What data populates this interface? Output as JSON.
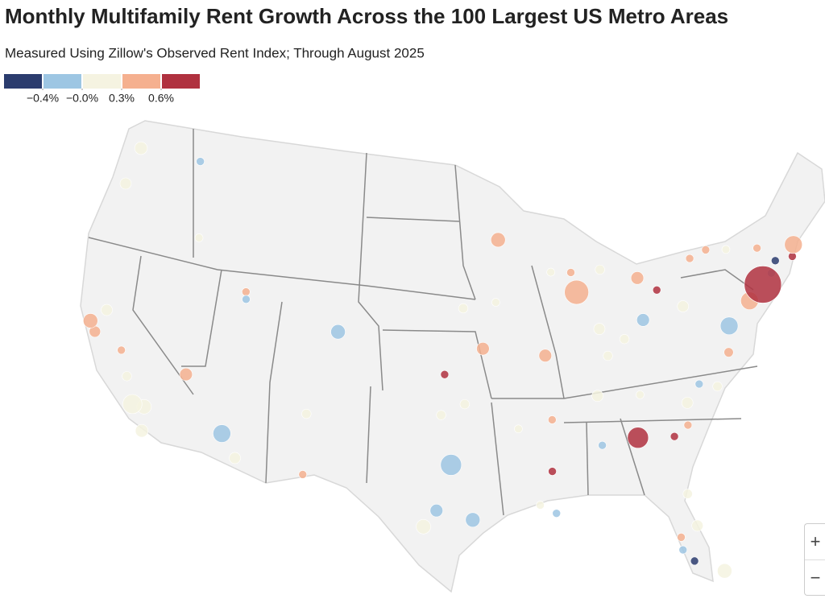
{
  "chart_data": {
    "type": "bubble-map",
    "title": "Monthly Multifamily Rent Growth Across the 100 Largest US Metro Areas",
    "subtitle": "Measured Using Zillow's Observed Rent Index; Through August 2025",
    "legend": {
      "colors": [
        "#2b3c6e",
        "#9dc6e3",
        "#f5f3e1",
        "#f5b08f",
        "#b0313f"
      ],
      "ticks": [
        {
          "value": -0.4,
          "label": "−0.4%"
        },
        {
          "value": 0,
          "label": "−0.0%"
        },
        {
          "value": 0.3,
          "label": "0.3%"
        },
        {
          "value": 0.6,
          "label": "0.6%"
        }
      ]
    },
    "points": [
      {
        "lon": -74.0,
        "lat": 40.7,
        "value": 0.7,
        "weight": 100
      },
      {
        "lon": -71.1,
        "lat": 42.4,
        "value": 0.45,
        "weight": 16
      },
      {
        "lon": -75.2,
        "lat": 40.0,
        "value": 0.45,
        "weight": 16
      },
      {
        "lon": -77.0,
        "lat": 38.9,
        "value": -0.2,
        "weight": 16
      },
      {
        "lon": -87.6,
        "lat": 41.9,
        "value": 0.45,
        "weight": 36
      },
      {
        "lon": -84.4,
        "lat": 33.7,
        "value": 0.7,
        "weight": 25
      },
      {
        "lon": -96.8,
        "lat": 32.8,
        "value": -0.2,
        "weight": 25
      },
      {
        "lon": -95.4,
        "lat": 29.8,
        "value": -0.2,
        "weight": 9
      },
      {
        "lon": -97.7,
        "lat": 30.3,
        "value": -0.2,
        "weight": 6
      },
      {
        "lon": -98.5,
        "lat": 29.4,
        "value": 0.1,
        "weight": 9
      },
      {
        "lon": -112.0,
        "lat": 33.4,
        "value": -0.2,
        "weight": 16
      },
      {
        "lon": -118.2,
        "lat": 34.0,
        "value": 0.2,
        "weight": 20
      },
      {
        "lon": -122.4,
        "lat": 37.8,
        "value": 0.45,
        "weight": 9
      },
      {
        "lon": -121.9,
        "lat": 37.3,
        "value": 0.45,
        "weight": 4
      },
      {
        "lon": -121.5,
        "lat": 38.6,
        "value": 0.15,
        "weight": 4
      },
      {
        "lon": -119.8,
        "lat": 36.7,
        "value": 0.45,
        "weight": 1
      },
      {
        "lon": -117.4,
        "lat": 34.0,
        "value": 0.2,
        "weight": 9
      },
      {
        "lon": -117.2,
        "lat": 32.7,
        "value": 0.2,
        "weight": 6
      },
      {
        "lon": -115.1,
        "lat": 36.2,
        "value": 0.45,
        "weight": 6
      },
      {
        "lon": -105.0,
        "lat": 39.7,
        "value": -0.2,
        "weight": 9
      },
      {
        "lon": -111.9,
        "lat": 40.8,
        "value": -0.1,
        "weight": 1
      },
      {
        "lon": -112.0,
        "lat": 41.2,
        "value": 0.45,
        "weight": 1
      },
      {
        "lon": -122.3,
        "lat": 47.6,
        "value": 0.15,
        "weight": 6
      },
      {
        "lon": -117.4,
        "lat": 47.7,
        "value": -0.2,
        "weight": 1
      },
      {
        "lon": -122.7,
        "lat": 45.5,
        "value": 0.15,
        "weight": 4
      },
      {
        "lon": -93.3,
        "lat": 45.0,
        "value": 0.45,
        "weight": 9
      },
      {
        "lon": -87.9,
        "lat": 43.0,
        "value": 0.45,
        "weight": 1
      },
      {
        "lon": -83.0,
        "lat": 42.3,
        "value": 0.45,
        "weight": 6
      },
      {
        "lon": -81.7,
        "lat": 41.5,
        "value": 0.7,
        "weight": 1
      },
      {
        "lon": -83.0,
        "lat": 40.0,
        "value": -0.2,
        "weight": 6
      },
      {
        "lon": -80.0,
        "lat": 40.4,
        "value": 0.15,
        "weight": 4
      },
      {
        "lon": -78.9,
        "lat": 42.9,
        "value": 0.45,
        "weight": 1
      },
      {
        "lon": -77.6,
        "lat": 43.2,
        "value": 0.45,
        "weight": 1
      },
      {
        "lon": -76.1,
        "lat": 43.0,
        "value": 0.15,
        "weight": 1
      },
      {
        "lon": -73.8,
        "lat": 42.7,
        "value": 0.45,
        "weight": 1
      },
      {
        "lon": -72.7,
        "lat": 41.8,
        "value": -0.5,
        "weight": 1
      },
      {
        "lon": -71.4,
        "lat": 41.8,
        "value": 0.7,
        "weight": 1
      },
      {
        "lon": -73.2,
        "lat": 41.2,
        "value": -0.2,
        "weight": 1
      },
      {
        "lon": -94.6,
        "lat": 39.1,
        "value": 0.45,
        "weight": 6
      },
      {
        "lon": -90.2,
        "lat": 38.6,
        "value": 0.45,
        "weight": 6
      },
      {
        "lon": -97.3,
        "lat": 37.7,
        "value": 0.7,
        "weight": 1
      },
      {
        "lon": -97.5,
        "lat": 35.5,
        "value": 0.15,
        "weight": 2
      },
      {
        "lon": -95.9,
        "lat": 36.1,
        "value": 0.15,
        "weight": 2
      },
      {
        "lon": -90.0,
        "lat": 35.1,
        "value": 0.45,
        "weight": 1
      },
      {
        "lon": -90.2,
        "lat": 32.3,
        "value": 0.7,
        "weight": 1
      },
      {
        "lon": -86.8,
        "lat": 33.5,
        "value": -0.2,
        "weight": 1
      },
      {
        "lon": -86.8,
        "lat": 36.2,
        "value": 0.15,
        "weight": 4
      },
      {
        "lon": -80.8,
        "lat": 35.2,
        "value": 0.15,
        "weight": 4
      },
      {
        "lon": -81.0,
        "lat": 34.0,
        "value": 0.45,
        "weight": 1
      },
      {
        "lon": -82.0,
        "lat": 33.5,
        "value": 0.7,
        "weight": 1
      },
      {
        "lon": -78.6,
        "lat": 35.8,
        "value": 0.15,
        "weight": 2
      },
      {
        "lon": -77.4,
        "lat": 37.5,
        "value": 0.45,
        "weight": 2
      },
      {
        "lon": -79.8,
        "lat": 36.1,
        "value": -0.2,
        "weight": 1
      },
      {
        "lon": -90.1,
        "lat": 30.0,
        "value": -0.2,
        "weight": 1
      },
      {
        "lon": -82.5,
        "lat": 28.0,
        "value": 0.45,
        "weight": 1
      },
      {
        "lon": -81.4,
        "lat": 28.5,
        "value": 0.15,
        "weight": 4
      },
      {
        "lon": -80.2,
        "lat": 25.8,
        "value": 0.15,
        "weight": 9
      },
      {
        "lon": -81.9,
        "lat": 26.6,
        "value": -0.5,
        "weight": 1
      },
      {
        "lon": -82.5,
        "lat": 27.3,
        "value": -0.2,
        "weight": 1
      },
      {
        "lon": -81.7,
        "lat": 30.3,
        "value": 0.15,
        "weight": 2
      },
      {
        "lon": -106.4,
        "lat": 31.8,
        "value": 0.45,
        "weight": 1
      },
      {
        "lon": -106.6,
        "lat": 35.1,
        "value": 0.15,
        "weight": 2
      },
      {
        "lon": -110.9,
        "lat": 32.2,
        "value": 0.15,
        "weight": 4
      },
      {
        "lon": -86.2,
        "lat": 39.8,
        "value": 0.15,
        "weight": 4
      },
      {
        "lon": -84.5,
        "lat": 39.1,
        "value": 0.15,
        "weight": 2
      },
      {
        "lon": -85.8,
        "lat": 38.3,
        "value": 0.15,
        "weight": 2
      },
      {
        "lon": -83.9,
        "lat": 36.0,
        "value": 0.15,
        "weight": 1
      },
      {
        "lon": -96.0,
        "lat": 41.3,
        "value": 0.15,
        "weight": 2
      },
      {
        "lon": -93.6,
        "lat": 41.6,
        "value": 0.15,
        "weight": 1
      },
      {
        "lon": -89.4,
        "lat": 43.1,
        "value": 0.15,
        "weight": 1
      },
      {
        "lon": -85.7,
        "lat": 43.0,
        "value": 0.15,
        "weight": 2
      },
      {
        "lon": -91.1,
        "lat": 30.5,
        "value": 0.15,
        "weight": 1
      },
      {
        "lon": -92.3,
        "lat": 34.7,
        "value": 0.15,
        "weight": 1
      },
      {
        "lon": -116.2,
        "lat": 43.6,
        "value": 0.15,
        "weight": 1
      },
      {
        "lon": -119.0,
        "lat": 35.4,
        "value": 0.15,
        "weight": 2
      }
    ],
    "controls": {
      "zoom_in": "+",
      "zoom_out": "−"
    }
  }
}
